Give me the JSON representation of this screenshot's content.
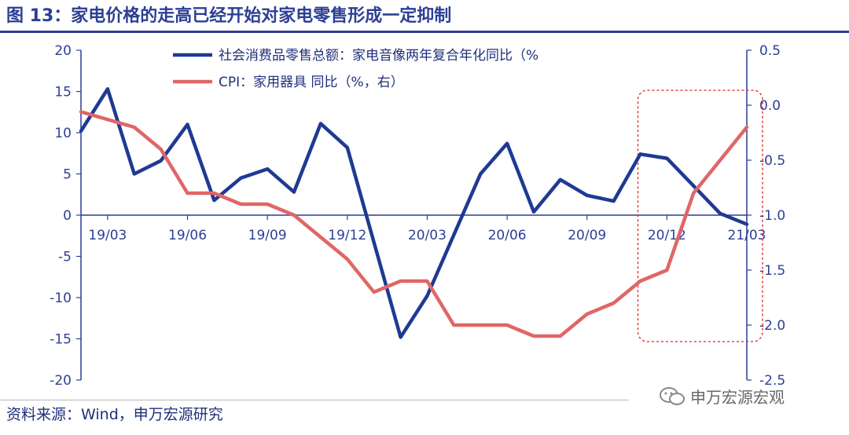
{
  "header": {
    "title": "图 13：家电价格的走高已经开始对家电零售形成一定抑制"
  },
  "footer": {
    "source": "资料来源：Wind，申万宏源研究",
    "watermark": "申万宏源宏观"
  },
  "chart_data": {
    "type": "line",
    "x": [
      "19/02",
      "19/03",
      "19/04",
      "19/05",
      "19/06",
      "19/07",
      "19/08",
      "19/09",
      "19/10",
      "19/11",
      "19/12",
      "20/01",
      "20/02",
      "20/03",
      "20/04",
      "20/05",
      "20/06",
      "20/07",
      "20/08",
      "20/09",
      "20/10",
      "20/11",
      "20/12",
      "21/01",
      "21/02",
      "21/03"
    ],
    "x_tick_labels": [
      "19/03",
      "19/06",
      "19/09",
      "19/12",
      "20/03",
      "20/06",
      "20/09",
      "20/12",
      "21/03"
    ],
    "y_left": {
      "ylim": [
        -20,
        20
      ],
      "ticks": [
        "20",
        "15",
        "10",
        "5",
        "0",
        "-5",
        "-10",
        "-15",
        "-20"
      ]
    },
    "y_right": {
      "ylim": [
        -2.5,
        0.5
      ],
      "ticks": [
        "0.5",
        "0.0",
        "-0.5",
        "-1.0",
        "-1.5",
        "-2.0",
        "-2.5"
      ]
    },
    "series": [
      {
        "name": "社会消费品零售总额：家电音像两年复合年化同比（%",
        "axis": "left",
        "color": "#1f3a93",
        "values": [
          10.2,
          15.3,
          5.0,
          6.6,
          11.0,
          1.8,
          4.5,
          5.6,
          2.8,
          11.1,
          8.2,
          null,
          -14.8,
          -9.8,
          null,
          5.0,
          8.7,
          0.4,
          4.3,
          2.4,
          1.7,
          7.4,
          6.9,
          null,
          0.2,
          -1.1
        ]
      },
      {
        "name": "CPI：家用器具 同比（%，右）",
        "axis": "right",
        "color": "#e06666",
        "values": [
          -0.06,
          null,
          -0.2,
          -0.4,
          -0.8,
          -0.8,
          -0.9,
          -0.9,
          -1.0,
          null,
          -1.4,
          -1.7,
          -1.6,
          -1.6,
          -2.0,
          -2.0,
          -2.0,
          -2.1,
          -2.1,
          -1.9,
          -1.8,
          -1.6,
          -1.5,
          -0.8,
          null,
          -0.2
        ]
      }
    ],
    "highlight_box": {
      "from": "20/11",
      "to": "21/03"
    }
  }
}
